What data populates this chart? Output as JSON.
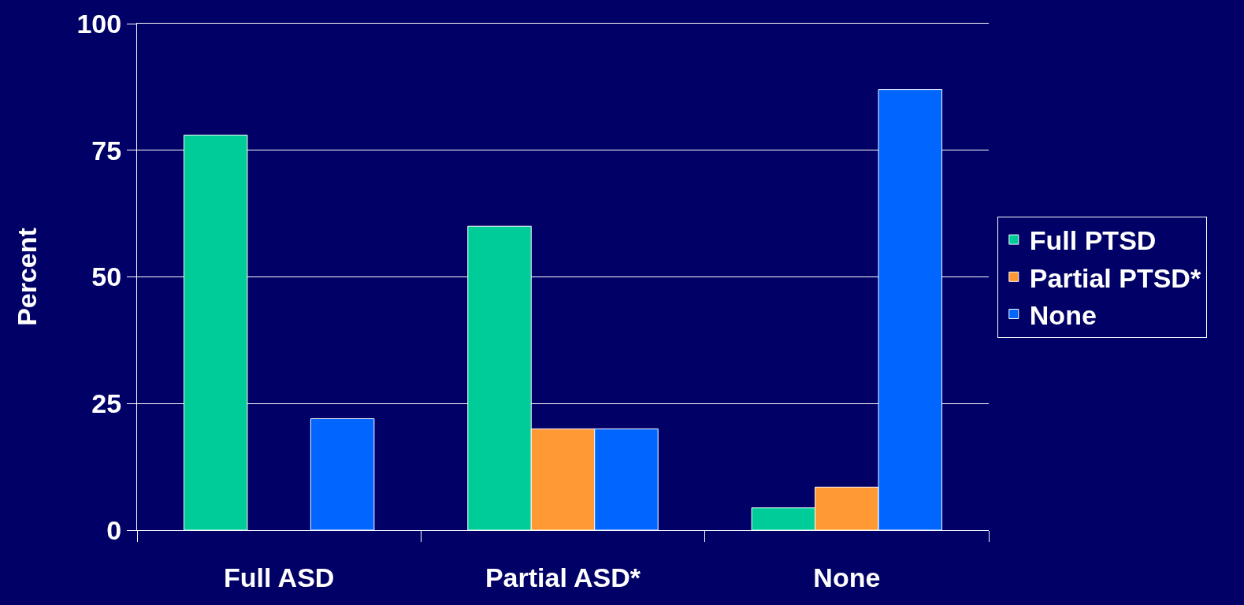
{
  "chart_data": {
    "type": "bar",
    "ylabel": "Percent",
    "categories": [
      "Full ASD",
      "Partial ASD*",
      "None"
    ],
    "series": [
      {
        "name": "Full PTSD",
        "color": "#00cc99",
        "values": [
          78,
          60,
          4.4
        ]
      },
      {
        "name": "Partial PTSD*",
        "color": "#ff9933",
        "values": [
          null,
          20,
          8.5
        ]
      },
      {
        "name": "None",
        "color": "#0066ff",
        "values": [
          22,
          20,
          87
        ]
      }
    ],
    "ylim": [
      0,
      100
    ],
    "yticks": [
      0,
      25,
      50,
      75,
      100
    ],
    "grid": "y",
    "legend": "right"
  }
}
